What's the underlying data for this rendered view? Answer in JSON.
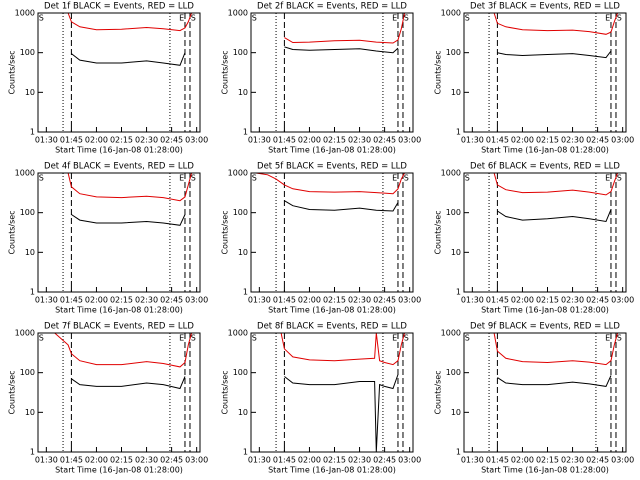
{
  "chart_data": [
    {
      "type": "line",
      "title": "Det 1f BLACK = Events, RED = LLD",
      "xlabel": "Start Time (16-Jan-08 01:28:00)",
      "ylabel": "Counts/sec",
      "x": [
        "01:43",
        "01:45",
        "01:50",
        "02:00",
        "02:15",
        "02:30",
        "02:40",
        "02:50",
        "02:53",
        "02:55",
        "02:57"
      ],
      "series": [
        {
          "name": "Events",
          "color": "#000000",
          "values": [
            null,
            95,
            65,
            55,
            55,
            62,
            55,
            48,
            100,
            null,
            null
          ]
        },
        {
          "name": "LLD",
          "color": "#e00000",
          "values": [
            1000,
            600,
            450,
            380,
            390,
            430,
            400,
            360,
            420,
            600,
            1000
          ]
        }
      ],
      "xlim": [
        "01:25",
        "03:02"
      ],
      "xticks": [
        "01:30",
        "01:45",
        "02:00",
        "02:15",
        "02:30",
        "02:45",
        "03:00"
      ],
      "ylim": [
        1,
        1000
      ],
      "yticks": [
        1,
        10,
        100,
        1000
      ],
      "log_y": true,
      "vlines": [
        {
          "x": "01:40",
          "style": "dotted"
        },
        {
          "x": "01:45",
          "style": "dashed"
        },
        {
          "x": "02:44",
          "style": "dotted"
        },
        {
          "x": "02:53",
          "style": "dashed"
        },
        {
          "x": "02:56",
          "style": "dashed"
        }
      ],
      "annotations": [
        {
          "text": "S",
          "x": "01:27"
        },
        {
          "text": "E",
          "x": "02:51"
        },
        {
          "text": "S",
          "x": "02:58"
        }
      ]
    },
    {
      "type": "line",
      "title": "Det 2f BLACK = Events, RED = LLD",
      "xlabel": "Start Time (16-Jan-08 01:28:00)",
      "ylabel": "Counts/sec",
      "x": [
        "01:43",
        "01:45",
        "01:50",
        "02:00",
        "02:15",
        "02:30",
        "02:40",
        "02:50",
        "02:53",
        "02:55",
        "02:57"
      ],
      "series": [
        {
          "name": "Events",
          "color": "#000000",
          "values": [
            null,
            140,
            120,
            115,
            120,
            125,
            110,
            100,
            130,
            null,
            null
          ]
        },
        {
          "name": "LLD",
          "color": "#e00000",
          "values": [
            null,
            240,
            180,
            185,
            200,
            205,
            185,
            175,
            210,
            400,
            1000
          ]
        }
      ],
      "xlim": [
        "01:25",
        "03:02"
      ],
      "xticks": [
        "01:30",
        "01:45",
        "02:00",
        "02:15",
        "02:30",
        "02:45",
        "03:00"
      ],
      "ylim": [
        1,
        1000
      ],
      "yticks": [
        1,
        10,
        100,
        1000
      ],
      "log_y": true,
      "vlines": [
        {
          "x": "01:40",
          "style": "dotted"
        },
        {
          "x": "01:45",
          "style": "dashed"
        },
        {
          "x": "02:44",
          "style": "dotted"
        },
        {
          "x": "02:53",
          "style": "dashed"
        },
        {
          "x": "02:56",
          "style": "dashed"
        }
      ],
      "annotations": [
        {
          "text": "S",
          "x": "01:27"
        },
        {
          "text": "E",
          "x": "02:51"
        },
        {
          "text": "S",
          "x": "02:58"
        }
      ]
    },
    {
      "type": "line",
      "title": "Det 3f BLACK = Events, RED = LLD",
      "xlabel": "Start Time (16-Jan-08 01:28:00)",
      "ylabel": "Counts/sec",
      "x": [
        "01:43",
        "01:45",
        "01:50",
        "02:00",
        "02:15",
        "02:30",
        "02:40",
        "02:50",
        "02:53",
        "02:55",
        "02:57"
      ],
      "series": [
        {
          "name": "Events",
          "color": "#000000",
          "values": [
            null,
            100,
            90,
            85,
            90,
            95,
            85,
            75,
            110,
            null,
            null
          ]
        },
        {
          "name": "LLD",
          "color": "#e00000",
          "values": [
            1000,
            550,
            450,
            380,
            360,
            370,
            340,
            290,
            330,
            600,
            1000
          ]
        }
      ],
      "xlim": [
        "01:25",
        "03:02"
      ],
      "xticks": [
        "01:30",
        "01:45",
        "02:00",
        "02:15",
        "02:30",
        "02:45",
        "03:00"
      ],
      "ylim": [
        1,
        1000
      ],
      "yticks": [
        1,
        10,
        100,
        1000
      ],
      "log_y": true,
      "vlines": [
        {
          "x": "01:40",
          "style": "dotted"
        },
        {
          "x": "01:45",
          "style": "dashed"
        },
        {
          "x": "02:44",
          "style": "dotted"
        },
        {
          "x": "02:53",
          "style": "dashed"
        },
        {
          "x": "02:56",
          "style": "dashed"
        }
      ],
      "annotations": [
        {
          "text": "S",
          "x": "01:27"
        },
        {
          "text": "E",
          "x": "02:51"
        },
        {
          "text": "S",
          "x": "02:58"
        }
      ]
    },
    {
      "type": "line",
      "title": "Det 4f BLACK = Events, RED = LLD",
      "xlabel": "Start Time (16-Jan-08 01:28:00)",
      "ylabel": "Counts/sec",
      "x": [
        "01:43",
        "01:45",
        "01:50",
        "02:00",
        "02:15",
        "02:30",
        "02:40",
        "02:50",
        "02:53",
        "02:55",
        "02:57"
      ],
      "series": [
        {
          "name": "Events",
          "color": "#000000",
          "values": [
            null,
            90,
            65,
            55,
            55,
            60,
            55,
            48,
            90,
            null,
            null
          ]
        },
        {
          "name": "LLD",
          "color": "#e00000",
          "values": [
            1000,
            450,
            300,
            250,
            240,
            260,
            240,
            200,
            250,
            500,
            1000
          ]
        }
      ],
      "xlim": [
        "01:25",
        "03:02"
      ],
      "xticks": [
        "01:30",
        "01:45",
        "02:00",
        "02:15",
        "02:30",
        "02:45",
        "03:00"
      ],
      "ylim": [
        1,
        1000
      ],
      "yticks": [
        1,
        10,
        100,
        1000
      ],
      "log_y": true,
      "vlines": [
        {
          "x": "01:40",
          "style": "dotted"
        },
        {
          "x": "01:45",
          "style": "dashed"
        },
        {
          "x": "02:44",
          "style": "dotted"
        },
        {
          "x": "02:53",
          "style": "dashed"
        },
        {
          "x": "02:56",
          "style": "dashed"
        }
      ],
      "annotations": [
        {
          "text": "S",
          "x": "01:27"
        },
        {
          "text": "E",
          "x": "02:51"
        },
        {
          "text": "S",
          "x": "02:58"
        }
      ]
    },
    {
      "type": "line",
      "title": "Det 5f BLACK = Events, RED = LLD",
      "xlabel": "Start Time (16-Jan-08 01:28:00)",
      "ylabel": "Counts/sec",
      "x": [
        "01:28",
        "01:35",
        "01:40",
        "01:45",
        "01:50",
        "02:00",
        "02:15",
        "02:30",
        "02:40",
        "02:50",
        "02:53",
        "02:55",
        "02:57"
      ],
      "series": [
        {
          "name": "Events",
          "color": "#000000",
          "values": [
            null,
            null,
            null,
            200,
            150,
            120,
            115,
            130,
            115,
            110,
            180,
            null,
            null
          ]
        },
        {
          "name": "LLD",
          "color": "#e00000",
          "values": [
            1000,
            900,
            700,
            500,
            400,
            340,
            330,
            340,
            320,
            300,
            400,
            700,
            1000
          ]
        }
      ],
      "xlim": [
        "01:25",
        "03:02"
      ],
      "xticks": [
        "01:30",
        "01:45",
        "02:00",
        "02:15",
        "02:30",
        "02:45",
        "03:00"
      ],
      "ylim": [
        1,
        1000
      ],
      "yticks": [
        1,
        10,
        100,
        1000
      ],
      "log_y": true,
      "vlines": [
        {
          "x": "01:40",
          "style": "dotted"
        },
        {
          "x": "01:45",
          "style": "dashed"
        },
        {
          "x": "02:44",
          "style": "dotted"
        },
        {
          "x": "02:53",
          "style": "dashed"
        },
        {
          "x": "02:56",
          "style": "dashed"
        }
      ],
      "annotations": [
        {
          "text": "S",
          "x": "01:27"
        },
        {
          "text": "E",
          "x": "02:51"
        },
        {
          "text": "S",
          "x": "02:58"
        }
      ]
    },
    {
      "type": "line",
      "title": "Det 6f BLACK = Events, RED = LLD",
      "xlabel": "Start Time (16-Jan-08 01:28:00)",
      "ylabel": "Counts/sec",
      "x": [
        "01:43",
        "01:45",
        "01:50",
        "02:00",
        "02:15",
        "02:30",
        "02:40",
        "02:50",
        "02:53",
        "02:55",
        "02:57"
      ],
      "series": [
        {
          "name": "Events",
          "color": "#000000",
          "values": [
            null,
            110,
            80,
            65,
            70,
            80,
            70,
            60,
            120,
            null,
            null
          ]
        },
        {
          "name": "LLD",
          "color": "#e00000",
          "values": [
            1000,
            500,
            380,
            320,
            330,
            370,
            330,
            280,
            340,
            600,
            1000
          ]
        }
      ],
      "xlim": [
        "01:25",
        "03:02"
      ],
      "xticks": [
        "01:30",
        "01:45",
        "02:00",
        "02:15",
        "02:30",
        "02:45",
        "03:00"
      ],
      "ylim": [
        1,
        1000
      ],
      "yticks": [
        1,
        10,
        100,
        1000
      ],
      "log_y": true,
      "vlines": [
        {
          "x": "01:40",
          "style": "dotted"
        },
        {
          "x": "01:45",
          "style": "dashed"
        },
        {
          "x": "02:44",
          "style": "dotted"
        },
        {
          "x": "02:53",
          "style": "dashed"
        },
        {
          "x": "02:56",
          "style": "dashed"
        }
      ],
      "annotations": [
        {
          "text": "S",
          "x": "01:27"
        },
        {
          "text": "E",
          "x": "02:51"
        },
        {
          "text": "S",
          "x": "02:58"
        }
      ]
    },
    {
      "type": "line",
      "title": "Det 7f BLACK = Events, RED = LLD",
      "xlabel": "Start Time (16-Jan-08 01:28:00)",
      "ylabel": "Counts/sec",
      "x": [
        "01:35",
        "01:43",
        "01:45",
        "01:50",
        "02:00",
        "02:15",
        "02:30",
        "02:40",
        "02:50",
        "02:53",
        "02:55",
        "02:57"
      ],
      "series": [
        {
          "name": "Events",
          "color": "#000000",
          "values": [
            null,
            null,
            70,
            50,
            45,
            45,
            55,
            50,
            40,
            80,
            null,
            null
          ]
        },
        {
          "name": "LLD",
          "color": "#e00000",
          "values": [
            1000,
            500,
            300,
            200,
            160,
            160,
            190,
            170,
            140,
            180,
            500,
            1000
          ]
        }
      ],
      "xlim": [
        "01:25",
        "03:02"
      ],
      "xticks": [
        "01:30",
        "01:45",
        "02:00",
        "02:15",
        "02:30",
        "02:45",
        "03:00"
      ],
      "ylim": [
        1,
        1000
      ],
      "yticks": [
        1,
        10,
        100,
        1000
      ],
      "log_y": true,
      "vlines": [
        {
          "x": "01:40",
          "style": "dotted"
        },
        {
          "x": "01:45",
          "style": "dashed"
        },
        {
          "x": "02:44",
          "style": "dotted"
        },
        {
          "x": "02:53",
          "style": "dashed"
        },
        {
          "x": "02:56",
          "style": "dashed"
        }
      ],
      "annotations": [
        {
          "text": "S",
          "x": "01:27"
        },
        {
          "text": "E",
          "x": "02:51"
        },
        {
          "text": "S",
          "x": "02:58"
        }
      ]
    },
    {
      "type": "line",
      "title": "Det 8f BLACK = Events, RED = LLD",
      "xlabel": "Start Time (16-Jan-08 01:28:00)",
      "ylabel": "Counts/sec",
      "x": [
        "01:43",
        "01:45",
        "01:50",
        "02:00",
        "02:15",
        "02:30",
        "02:39",
        "02:40",
        "02:42",
        "02:45",
        "02:50",
        "02:53",
        "02:55",
        "02:57"
      ],
      "series": [
        {
          "name": "Events",
          "color": "#000000",
          "values": [
            null,
            80,
            55,
            50,
            50,
            60,
            60,
            1,
            50,
            45,
            40,
            90,
            null,
            null
          ]
        },
        {
          "name": "LLD",
          "color": "#e00000",
          "values": [
            1000,
            400,
            250,
            210,
            200,
            220,
            230,
            1000,
            200,
            180,
            160,
            200,
            500,
            1000
          ]
        }
      ],
      "xlim": [
        "01:25",
        "03:02"
      ],
      "xticks": [
        "01:30",
        "01:45",
        "02:00",
        "02:15",
        "02:30",
        "02:45",
        "03:00"
      ],
      "ylim": [
        1,
        1000
      ],
      "yticks": [
        1,
        10,
        100,
        1000
      ],
      "log_y": true,
      "vlines": [
        {
          "x": "01:40",
          "style": "dotted"
        },
        {
          "x": "01:45",
          "style": "dashed"
        },
        {
          "x": "02:44",
          "style": "dotted"
        },
        {
          "x": "02:53",
          "style": "dashed"
        },
        {
          "x": "02:56",
          "style": "dashed"
        }
      ],
      "annotations": [
        {
          "text": "S",
          "x": "01:27"
        },
        {
          "text": "E",
          "x": "02:51"
        },
        {
          "text": "S",
          "x": "02:58"
        }
      ]
    },
    {
      "type": "line",
      "title": "Det 9f BLACK = Events, RED = LLD",
      "xlabel": "Start Time (16-Jan-08 01:28:00)",
      "ylabel": "Counts/sec",
      "x": [
        "01:43",
        "01:45",
        "01:50",
        "02:00",
        "02:15",
        "02:30",
        "02:40",
        "02:50",
        "02:53",
        "02:55",
        "02:57"
      ],
      "series": [
        {
          "name": "Events",
          "color": "#000000",
          "values": [
            null,
            75,
            55,
            50,
            50,
            58,
            52,
            45,
            85,
            null,
            null
          ]
        },
        {
          "name": "LLD",
          "color": "#e00000",
          "values": [
            1000,
            350,
            230,
            190,
            180,
            200,
            185,
            160,
            200,
            500,
            1000
          ]
        }
      ],
      "xlim": [
        "01:25",
        "03:02"
      ],
      "xticks": [
        "01:30",
        "01:45",
        "02:00",
        "02:15",
        "02:30",
        "02:45",
        "03:00"
      ],
      "ylim": [
        1,
        1000
      ],
      "yticks": [
        1,
        10,
        100,
        1000
      ],
      "log_y": true,
      "vlines": [
        {
          "x": "01:40",
          "style": "dotted"
        },
        {
          "x": "01:45",
          "style": "dashed"
        },
        {
          "x": "02:44",
          "style": "dotted"
        },
        {
          "x": "02:53",
          "style": "dashed"
        },
        {
          "x": "02:56",
          "style": "dashed"
        }
      ],
      "annotations": [
        {
          "text": "S",
          "x": "01:27"
        },
        {
          "text": "E",
          "x": "02:51"
        },
        {
          "text": "S",
          "x": "02:58"
        }
      ]
    }
  ]
}
